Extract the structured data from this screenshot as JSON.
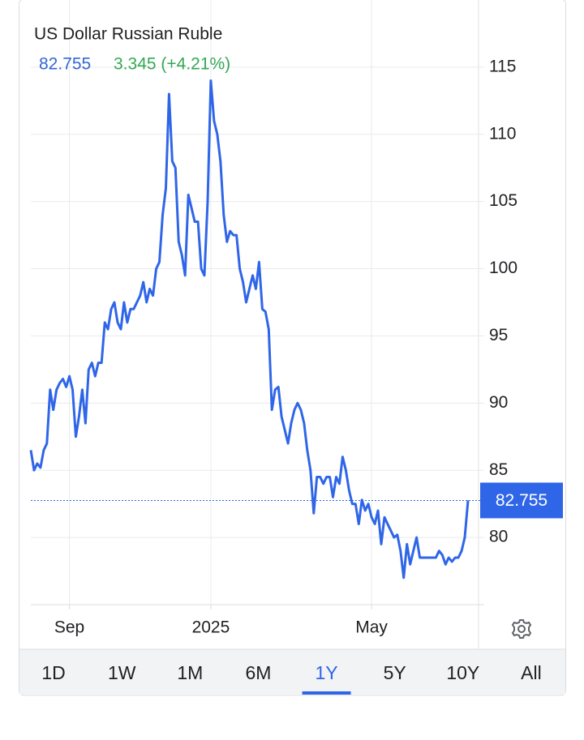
{
  "chart_data": {
    "type": "line",
    "title": "US Dollar Russian Ruble",
    "price": 82.755,
    "change": "3.345 (+4.21%)",
    "series": [
      {
        "color": "#2f66e8",
        "values": [
          86.5,
          85,
          85.5,
          85.2,
          86.5,
          87,
          91,
          89.5,
          91,
          91.5,
          91.8,
          91.2,
          92,
          91,
          87.5,
          89,
          91,
          88.5,
          92.5,
          93,
          92,
          93,
          93,
          96,
          95.5,
          97,
          97.5,
          96,
          95.5,
          97.5,
          96,
          97,
          97,
          97.5,
          98,
          99,
          97.5,
          98.5,
          98,
          100,
          100.5,
          104,
          106,
          113,
          108,
          107.5,
          102,
          101,
          99.5,
          105.5,
          104.5,
          103.5,
          103.5,
          100,
          99.5,
          105,
          114,
          111,
          110,
          108,
          104,
          102,
          102.8,
          102.5,
          102.5,
          100,
          99,
          97.5,
          98.5,
          99.5,
          98.5,
          100.5,
          97,
          96.8,
          95.5,
          89.5,
          91,
          91.2,
          89,
          88,
          87,
          88.5,
          89.5,
          90,
          89.5,
          88.5,
          86.5,
          85,
          81.8,
          84.5,
          84.5,
          84,
          84.5,
          84.5,
          83,
          84.5,
          84,
          86,
          85,
          83.5,
          82.5,
          82.5,
          81,
          82.8,
          82,
          82.5,
          81.5,
          81,
          82,
          79.5,
          81.5,
          81,
          80.5,
          80,
          80.2,
          79,
          77,
          79.5,
          78,
          79,
          80,
          78.5,
          78.5,
          78.5,
          78.5,
          78.5,
          78.5,
          79,
          78.7,
          78,
          78.5,
          78.2,
          78.5,
          78.5,
          79,
          80,
          82.755
        ]
      }
    ],
    "xlim": [
      0,
      136
    ],
    "xticks": [
      {
        "value": 12,
        "label": "Sep"
      },
      {
        "value": 56,
        "label": "2025"
      },
      {
        "value": 106,
        "label": "May"
      }
    ],
    "ylim": [
      75,
      120
    ],
    "yticks": [
      80,
      85,
      90,
      95,
      100,
      105,
      110,
      115
    ],
    "grid": true,
    "ranges": [
      "1D",
      "1W",
      "1M",
      "6M",
      "1Y",
      "5Y",
      "10Y",
      "All"
    ],
    "active_range": "1Y"
  }
}
